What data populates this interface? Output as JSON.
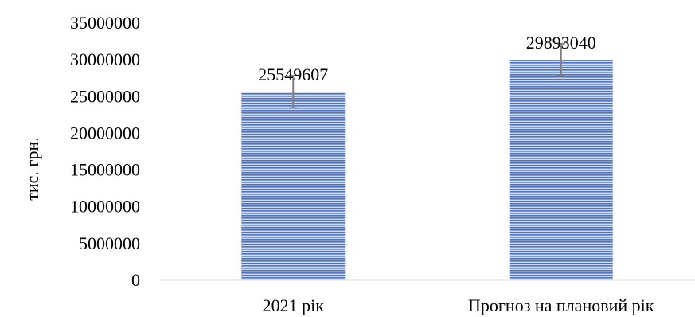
{
  "chart_data": {
    "type": "bar",
    "title": "",
    "xlabel": "",
    "ylabel": "тис. грн.",
    "ylim": [
      0,
      35000000
    ],
    "yticks": [
      "0",
      "5000000",
      "10000000",
      "15000000",
      "20000000",
      "25000000",
      "30000000",
      "35000000"
    ],
    "categories": [
      "2021 рік",
      "Прогноз на плановий рік"
    ],
    "values": [
      25549607,
      29893040
    ],
    "data_labels": [
      "25549607",
      "29893040"
    ],
    "error_bars": [
      2200000,
      2200000
    ],
    "grid": false,
    "legend": "none",
    "colors": {
      "bar_stripe_dark": "#4f72c4",
      "bar_stripe_light": "#d2dcf1",
      "error_bar": "#7f7f7f",
      "axis": "#bfbfbf"
    }
  }
}
